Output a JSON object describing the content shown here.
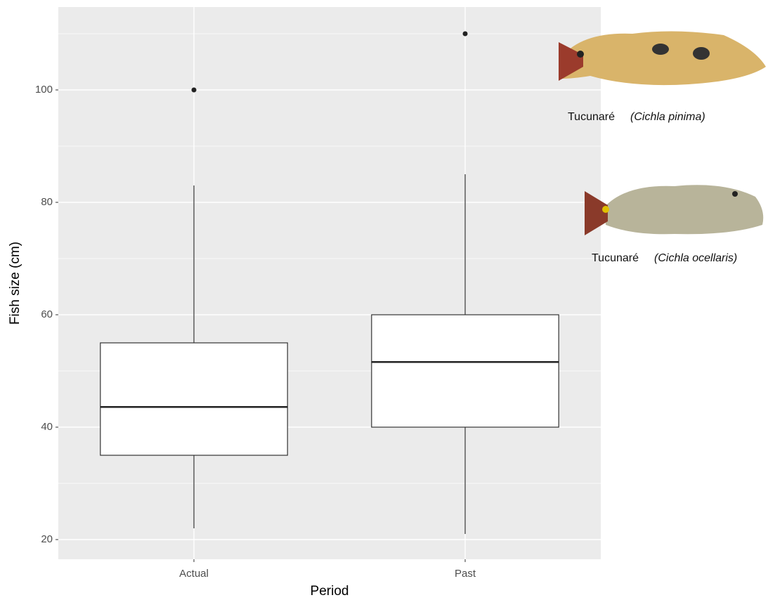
{
  "chart_data": {
    "type": "box",
    "x_label": "Period",
    "y_label": "Fish size (cm)",
    "categories": [
      "Actual",
      "Past"
    ],
    "boxes": [
      {
        "low": 22,
        "q1": 35,
        "median": 43.6,
        "q3": 55,
        "high": 83,
        "outliers": [
          100
        ]
      },
      {
        "low": 21,
        "q1": 40,
        "median": 51.6,
        "q3": 60,
        "high": 85,
        "outliers": [
          110
        ]
      }
    ],
    "ylim": [
      16.5,
      114.75
    ],
    "yticks": [
      20,
      40,
      60,
      80,
      100
    ],
    "yminorticks": [
      30,
      50,
      70,
      90,
      110
    ],
    "grid": true,
    "panel_color": "#ebebeb",
    "box_color": "#ffffff",
    "annotations": [
      {
        "name": "Tucunaré",
        "species": "(Cichla pinima)"
      },
      {
        "name": "Tucunaré",
        "species": "(Cichla ocellaris)"
      }
    ]
  }
}
